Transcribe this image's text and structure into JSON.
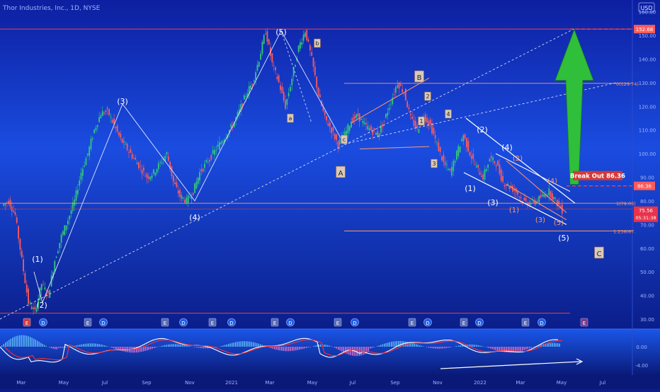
{
  "header": {
    "symbol_title": "Thor Industries, Inc., 1D, NYSE",
    "currency": "USD"
  },
  "chart_data": {
    "type": "line",
    "x_axis": {
      "ticks": [
        "Mar",
        "May",
        "Jul",
        "Sep",
        "Nov",
        "2021",
        "Mar",
        "May",
        "Jul",
        "Sep",
        "Nov",
        "2022",
        "Mar",
        "May",
        "Jul"
      ]
    },
    "y_axis": {
      "ticks": [
        "160.00",
        "150.00",
        "140.00",
        "130.00",
        "120.00",
        "110.00",
        "100.00",
        "90.00",
        "80.00",
        "70.00",
        "60.00",
        "50.00",
        "40.00",
        "30.00"
      ],
      "ylim": [
        27,
        162
      ]
    },
    "price_series": {
      "values": [
        78,
        80,
        74,
        55,
        37,
        33,
        45,
        40,
        55,
        65,
        72,
        80,
        92,
        100,
        110,
        117,
        118,
        112,
        106,
        102,
        98,
        94,
        90,
        92,
        96,
        100,
        88,
        82,
        80,
        84,
        92,
        96,
        100,
        104,
        108,
        112,
        118,
        125,
        130,
        140,
        152,
        138,
        130,
        120,
        132,
        145,
        152,
        140,
        125,
        115,
        110,
        104,
        108,
        114,
        116,
        112,
        110,
        108,
        114,
        122,
        130,
        126,
        115,
        110,
        116,
        112,
        104,
        96,
        92,
        100,
        108,
        100,
        94,
        90,
        98,
        96,
        88,
        86,
        84,
        80,
        79,
        80,
        82,
        84,
        80,
        76
      ]
    },
    "price_labels": {
      "resistance": "152.68",
      "breakout": "86.36",
      "current": "75.56",
      "countdown": "05:31:38"
    },
    "levels": {
      "fib_1": "1(79.03)",
      "fib_0": "0(129.74)",
      "fib_1236": "1.236(67.",
      "breakout_text": "Break Out 86.36"
    },
    "wave_labels": [
      "(1)",
      "(2)",
      "(3)",
      "(4)",
      "(5)",
      "a",
      "b",
      "c",
      "A",
      "B",
      "C",
      "1",
      "2",
      "3",
      "4",
      "(1)",
      "(2)",
      "(3)",
      "(4)",
      "(5)",
      "(1)",
      "(2)",
      "(3)",
      "(4)",
      "(5)"
    ],
    "events": [
      "E",
      "D",
      "E",
      "D",
      "E",
      "D",
      "E",
      "D",
      "E",
      "D",
      "E",
      "D",
      "E",
      "D",
      "E",
      "D",
      "E",
      "D",
      "E",
      "D",
      "E"
    ],
    "oscillator": {
      "ticks": [
        "0.00",
        "-4.00"
      ]
    }
  },
  "colors": {
    "background_top": "#1a4cdc",
    "background_bottom": "#0b1e8a",
    "candle_up": "#32c87a",
    "candle_down": "#ff5a5a",
    "resistance_line": "#ff3b30",
    "fib_line": "#ff9a6a",
    "breakout_arrow": "#2fbf3a",
    "label_bg": "#ff5a5a"
  }
}
